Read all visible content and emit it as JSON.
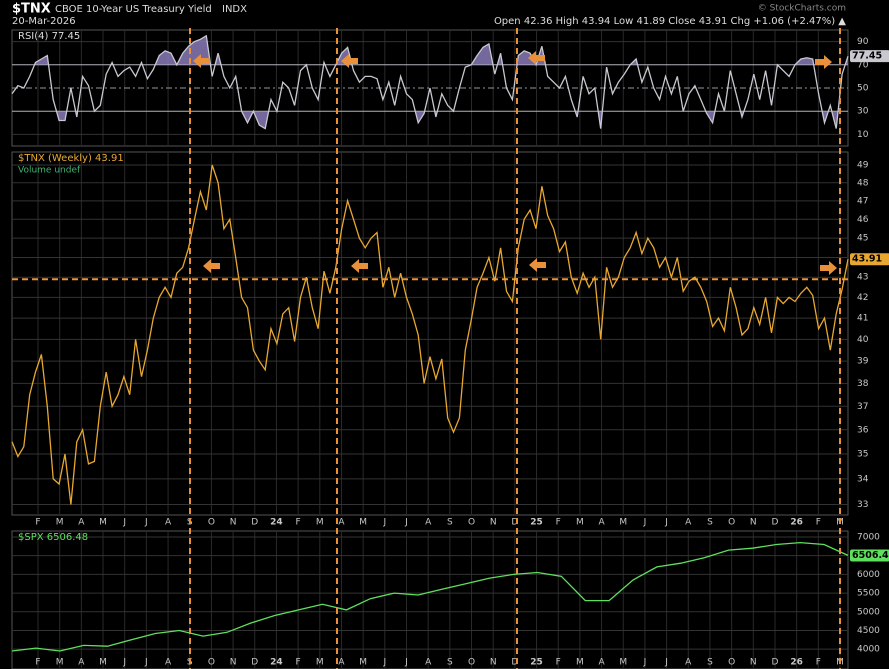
{
  "header": {
    "symbol": "$TNX",
    "name": "CBOE 10-Year US Treasury Yield",
    "exchange": "INDX",
    "date": "20-Mar-2026",
    "quote": "Open 42.36  High 43.94  Low 41.89  Close 43.91  Chg +1.06 (+2.47%) ▲",
    "credit": "© StockCharts.com"
  },
  "x_labels": [
    "F",
    "M",
    "A",
    "M",
    "J",
    "J",
    "A",
    "S",
    "O",
    "N",
    "D",
    "24",
    "F",
    "M",
    "A",
    "M",
    "J",
    "J",
    "A",
    "S",
    "O",
    "N",
    "D",
    "25",
    "F",
    "M",
    "A",
    "M",
    "J",
    "J",
    "A",
    "S",
    "O",
    "N",
    "D",
    "26",
    "F",
    "M"
  ],
  "chart_data": [
    {
      "type": "line",
      "legend": "RSI(4) 77.45",
      "color": "#c8c8d0",
      "fill_color": "#8a7ab8",
      "ylim": [
        0,
        100
      ],
      "yticks": [
        10,
        30,
        50,
        70,
        90
      ],
      "upper": 70,
      "lower": 30,
      "middle": 50,
      "values": [
        45,
        52,
        50,
        60,
        72,
        75,
        78,
        40,
        22,
        22,
        50,
        25,
        60,
        52,
        30,
        35,
        62,
        72,
        60,
        65,
        68,
        60,
        72,
        58,
        66,
        78,
        82,
        80,
        70,
        80,
        86,
        90,
        92,
        95,
        60,
        80,
        60,
        50,
        60,
        30,
        20,
        30,
        18,
        15,
        40,
        30,
        55,
        50,
        35,
        65,
        70,
        50,
        40,
        72,
        60,
        70,
        80,
        85,
        65,
        55,
        60,
        60,
        58,
        40,
        55,
        35,
        60,
        45,
        40,
        20,
        28,
        50,
        25,
        45,
        35,
        30,
        50,
        68,
        70,
        78,
        85,
        88,
        62,
        80,
        50,
        40,
        78,
        82,
        80,
        70,
        86,
        60,
        55,
        50,
        60,
        40,
        25,
        60,
        45,
        50,
        15,
        68,
        45,
        55,
        62,
        70,
        75,
        55,
        68,
        50,
        40,
        60,
        45,
        60,
        30,
        45,
        52,
        40,
        28,
        20,
        45,
        30,
        65,
        45,
        25,
        40,
        62,
        40,
        65,
        35,
        70,
        65,
        60,
        70,
        75,
        76,
        75,
        45,
        20,
        35,
        15,
        62,
        77.45
      ]
    },
    {
      "type": "line",
      "legend": "$TNX (Weekly) 43.91",
      "sublegend": "Volume undef",
      "color": "#e8a830",
      "log_scale": true,
      "ylim": [
        32.6,
        49.75
      ],
      "yticks": [
        33,
        34,
        35,
        36,
        37,
        38,
        39,
        40,
        41,
        42,
        43,
        44,
        45,
        46,
        47,
        48,
        49
      ],
      "reference_level": 42.9,
      "values": [
        35.5,
        34.9,
        35.3,
        37.5,
        38.5,
        39.3,
        37,
        34,
        33.8,
        35,
        33,
        35.5,
        36,
        34.6,
        34.7,
        37,
        38.5,
        37,
        37.5,
        38.3,
        37.5,
        40,
        38.3,
        39.5,
        41,
        42,
        42.5,
        42,
        43.2,
        43.5,
        44.5,
        46,
        47.5,
        46.5,
        49,
        48,
        45.5,
        46,
        44,
        42,
        41.5,
        39.5,
        39,
        38.6,
        40.5,
        39.8,
        41.2,
        41.5,
        39.9,
        42,
        43,
        41.5,
        40.5,
        43.3,
        42.2,
        43.5,
        45.5,
        47,
        46,
        45,
        44.5,
        45,
        45.3,
        42.5,
        43.5,
        42,
        43.2,
        42,
        41.2,
        40.2,
        38,
        39.2,
        38.2,
        39.1,
        36.5,
        35.9,
        36.5,
        39.5,
        40.9,
        42.5,
        43.2,
        44,
        42.8,
        44.5,
        42.3,
        41.8,
        44.5,
        46,
        46.5,
        45.5,
        47.8,
        46.2,
        45.5,
        44.3,
        44.8,
        43,
        42.2,
        43.2,
        42.5,
        43,
        40,
        43.5,
        42.5,
        43,
        44,
        44.5,
        45.3,
        44.2,
        45,
        44.5,
        43.5,
        44,
        43,
        44,
        42.3,
        42.8,
        43,
        42.5,
        41.8,
        40.6,
        41,
        40.4,
        42.5,
        41.5,
        40.2,
        40.5,
        41.5,
        40.7,
        42,
        40.3,
        42,
        41.7,
        42,
        41.8,
        42.2,
        42.5,
        42.1,
        40.5,
        41,
        39.5,
        41.2,
        42.4,
        43.91
      ]
    },
    {
      "type": "line",
      "legend": "$SPX 6506.48",
      "color": "#5ee05e",
      "ylim": [
        3470,
        7160
      ],
      "yticks": [
        4000,
        4500,
        5000,
        5500,
        6000,
        6500,
        7000
      ],
      "values": [
        3950,
        4030,
        3950,
        4100,
        4080,
        4250,
        4420,
        4500,
        4350,
        4450,
        4700,
        4900,
        5050,
        5200,
        5050,
        5350,
        5500,
        5450,
        5600,
        5750,
        5900,
        6000,
        6050,
        5950,
        5300,
        5300,
        5850,
        6200,
        6300,
        6450,
        6650,
        6700,
        6800,
        6850,
        6800,
        6506.48
      ]
    }
  ]
}
